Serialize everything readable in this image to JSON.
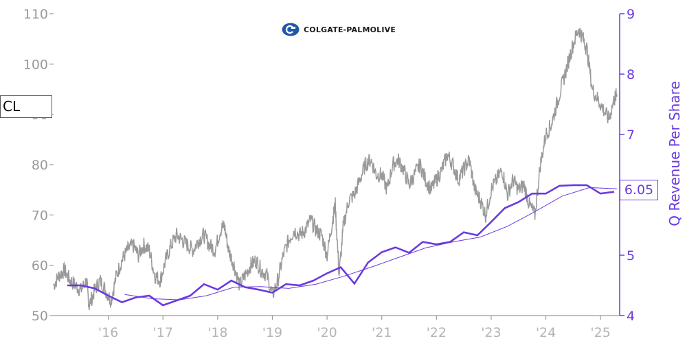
{
  "chart_data": {
    "type": "line",
    "ticker": "CL",
    "company": "COLGATE-PALMOLIVE",
    "right_axis_label": "Q Revenue Per Share",
    "last_value_label": "6.05",
    "x_range": [
      2015.0,
      2025.35
    ],
    "x_ticks": [
      {
        "x": 2016,
        "label": "'16"
      },
      {
        "x": 2017,
        "label": "'17"
      },
      {
        "x": 2018,
        "label": "'18"
      },
      {
        "x": 2019,
        "label": "'19"
      },
      {
        "x": 2020,
        "label": "'20"
      },
      {
        "x": 2021,
        "label": "'21"
      },
      {
        "x": 2022,
        "label": "'22"
      },
      {
        "x": 2023,
        "label": "'23"
      },
      {
        "x": 2024,
        "label": "'24"
      },
      {
        "x": 2025,
        "label": "'25"
      }
    ],
    "left_axis": {
      "ylim": [
        50,
        110
      ],
      "ticks": [
        50,
        60,
        70,
        80,
        90,
        100,
        110
      ]
    },
    "right_axis": {
      "ylim": [
        4,
        9
      ],
      "ticks": [
        4,
        5,
        6,
        7,
        8,
        9
      ]
    },
    "price_color": "#999999",
    "revenue_color": "#6a3ae0",
    "price_series": {
      "name": "price",
      "x": [
        2015.0,
        2015.1,
        2015.2,
        2015.3,
        2015.4,
        2015.5,
        2015.6,
        2015.65,
        2015.75,
        2015.85,
        2015.95,
        2016.05,
        2016.15,
        2016.25,
        2016.35,
        2016.45,
        2016.55,
        2016.65,
        2016.75,
        2016.85,
        2016.95,
        2017.05,
        2017.15,
        2017.25,
        2017.35,
        2017.45,
        2017.55,
        2017.65,
        2017.75,
        2017.85,
        2017.95,
        2018.05,
        2018.12,
        2018.2,
        2018.3,
        2018.4,
        2018.5,
        2018.6,
        2018.7,
        2018.8,
        2018.9,
        2019.0,
        2019.1,
        2019.2,
        2019.3,
        2019.4,
        2019.5,
        2019.6,
        2019.7,
        2019.8,
        2019.9,
        2020.0,
        2020.1,
        2020.15,
        2020.22,
        2020.3,
        2020.4,
        2020.5,
        2020.6,
        2020.7,
        2020.8,
        2020.9,
        2021.0,
        2021.1,
        2021.2,
        2021.3,
        2021.4,
        2021.5,
        2021.6,
        2021.7,
        2021.8,
        2021.9,
        2022.0,
        2022.1,
        2022.2,
        2022.3,
        2022.4,
        2022.5,
        2022.6,
        2022.7,
        2022.8,
        2022.9,
        2023.0,
        2023.1,
        2023.2,
        2023.3,
        2023.4,
        2023.5,
        2023.6,
        2023.7,
        2023.8,
        2023.9,
        2024.0,
        2024.1,
        2024.2,
        2024.3,
        2024.4,
        2024.5,
        2024.6,
        2024.68,
        2024.75,
        2024.85,
        2024.95,
        2025.05,
        2025.15,
        2025.25,
        2025.3
      ],
      "y": [
        56,
        58,
        59,
        57,
        56,
        55,
        57,
        52,
        55,
        57,
        55,
        53,
        58,
        61,
        63,
        64,
        62,
        64,
        63,
        58,
        57,
        61,
        64,
        66,
        65,
        64,
        63,
        65,
        66,
        64,
        63,
        67,
        68,
        63,
        60,
        56,
        58,
        60,
        61,
        59,
        58,
        54,
        57,
        62,
        65,
        67,
        66,
        67,
        69,
        67,
        66,
        62,
        69,
        72,
        58,
        68,
        73,
        74,
        77,
        80,
        81,
        78,
        78,
        75,
        80,
        81,
        79,
        76,
        78,
        80,
        77,
        75,
        77,
        79,
        82,
        80,
        77,
        79,
        81,
        75,
        73,
        70,
        75,
        77,
        79,
        74,
        77,
        75,
        76,
        72,
        70,
        80,
        86,
        88,
        92,
        96,
        100,
        104,
        107,
        105,
        103,
        95,
        93,
        91,
        89,
        93,
        94
      ]
    },
    "revenue_series": {
      "name": "Q Revenue Per Share",
      "x": [
        2015.25,
        2015.5,
        2015.75,
        2016.0,
        2016.25,
        2016.5,
        2016.75,
        2017.0,
        2017.25,
        2017.5,
        2017.75,
        2018.0,
        2018.25,
        2018.5,
        2018.75,
        2019.0,
        2019.25,
        2019.5,
        2019.75,
        2020.0,
        2020.25,
        2020.5,
        2020.75,
        2021.0,
        2021.25,
        2021.5,
        2021.75,
        2022.0,
        2022.25,
        2022.5,
        2022.75,
        2023.0,
        2023.25,
        2023.5,
        2023.75,
        2024.0,
        2024.25,
        2024.5,
        2024.75,
        2025.0,
        2025.25
      ],
      "y": [
        4.5,
        4.5,
        4.45,
        4.33,
        4.22,
        4.3,
        4.33,
        4.17,
        4.25,
        4.33,
        4.52,
        4.43,
        4.58,
        4.47,
        4.43,
        4.38,
        4.52,
        4.5,
        4.58,
        4.7,
        4.8,
        4.53,
        4.88,
        5.05,
        5.13,
        5.04,
        5.22,
        5.18,
        5.22,
        5.38,
        5.33,
        5.55,
        5.78,
        5.88,
        6.02,
        6.02,
        6.15,
        6.16,
        6.16,
        6.02,
        6.05
      ]
    },
    "revenue_trend": {
      "name": "trend",
      "x": [
        2016.3,
        2016.8,
        2017.3,
        2017.8,
        2018.3,
        2018.8,
        2019.3,
        2019.8,
        2020.3,
        2020.8,
        2021.3,
        2021.8,
        2022.3,
        2022.8,
        2023.3,
        2023.8,
        2024.3,
        2024.8,
        2025.3
      ],
      "y": [
        4.35,
        4.28,
        4.26,
        4.33,
        4.47,
        4.48,
        4.45,
        4.52,
        4.65,
        4.8,
        4.96,
        5.12,
        5.22,
        5.3,
        5.48,
        5.72,
        5.98,
        6.12,
        6.1
      ]
    }
  }
}
